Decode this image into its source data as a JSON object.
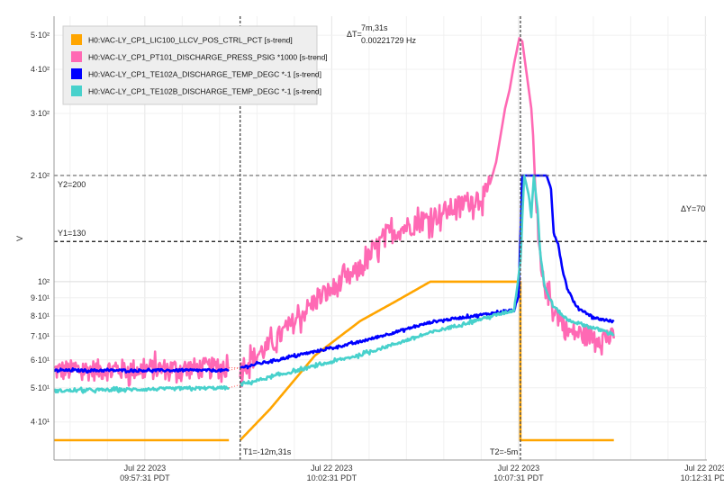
{
  "chart_data": {
    "type": "line",
    "title": "",
    "xlabel": "",
    "ylabel": "V",
    "yscale": "log",
    "xunits": "minutes since Jul 22 2023 09:57:31 PDT",
    "xlim": [
      -2.43,
      15.04
    ],
    "ylim": [
      31.2,
      566
    ],
    "grid": true,
    "legend_placement": "top-left",
    "y_ticks": [
      {
        "value": 40,
        "label": "4·10¹"
      },
      {
        "value": 50,
        "label": "5·10¹"
      },
      {
        "value": 60,
        "label": "6·10¹"
      },
      {
        "value": 70,
        "label": "7·10¹"
      },
      {
        "value": 80,
        "label": "8·10¹"
      },
      {
        "value": 90,
        "label": "9·10¹"
      },
      {
        "value": 100,
        "label": "10²"
      },
      {
        "value": 200,
        "label": "2·10²"
      },
      {
        "value": 300,
        "label": "3·10²"
      },
      {
        "value": 400,
        "label": "4·10²"
      },
      {
        "value": 500,
        "label": "5·10²"
      }
    ],
    "x_ticks": [
      {
        "value": 0,
        "date": "Jul 22 2023",
        "time": "09:57:31 PDT"
      },
      {
        "value": 5,
        "date": "Jul 22 2023",
        "time": "10:02:31 PDT"
      },
      {
        "value": 10,
        "date": "Jul 22 2023",
        "time": "10:07:31 PDT"
      },
      {
        "value": 15,
        "date": "Jul 22 2023",
        "time": "10:12:31 PDT"
      }
    ],
    "series": [
      {
        "name": "H0:VAC-LY_CP1_LIC100_LLCV_POS_CTRL_PCT [s-trend]",
        "color": "#FFA500",
        "noise": 0,
        "segments": [
          [
            [
              -2.43,
              35.5
            ],
            [
              2.25,
              35.5
            ]
          ],
          [
            [
              2.55,
              35.5
            ],
            [
              3.35,
              43.5
            ],
            [
              4.55,
              61.7
            ],
            [
              5.76,
              77.3
            ],
            [
              6.72,
              88
            ],
            [
              7.64,
              100
            ],
            [
              10.05,
              100
            ],
            [
              10.05,
              35.5
            ],
            [
              12.55,
              35.5
            ]
          ]
        ]
      },
      {
        "name": "H0:VAC-LY_CP1_PT101_DISCHARGE_PRESS_PSIG *1000 [s-trend]",
        "color": "#FF69B4",
        "noise": 0.07,
        "segments": [
          [
            [
              -2.43,
              56
            ],
            [
              2.25,
              57
            ]
          ],
          [
            [
              2.55,
              57
            ],
            [
              3.35,
              66
            ],
            [
              4.55,
              88
            ],
            [
              5.76,
              108
            ],
            [
              6.45,
              136
            ],
            [
              7.71,
              153
            ],
            [
              9.16,
              178
            ],
            [
              9.4,
              218
            ],
            [
              9.52,
              260
            ],
            [
              9.64,
              310
            ],
            [
              9.76,
              350
            ],
            [
              9.88,
              415
            ],
            [
              10.02,
              490
            ],
            [
              10.1,
              480
            ],
            [
              10.34,
              310
            ],
            [
              10.39,
              260
            ],
            [
              10.46,
              170
            ],
            [
              10.53,
              130
            ],
            [
              10.63,
              102
            ],
            [
              10.82,
              90
            ],
            [
              11.06,
              80
            ],
            [
              11.3,
              72
            ],
            [
              12.55,
              69
            ]
          ]
        ]
      },
      {
        "name": "H0:VAC-LY_CP1_TE102A_DISCHARGE_TEMP_DEGC *-1 [s-trend]",
        "color": "#0000FF",
        "noise": 0.008,
        "segments": [
          [
            [
              -2.43,
              56
            ],
            [
              2.25,
              56
            ]
          ],
          [
            [
              2.55,
              57
            ],
            [
              5.76,
              67.5
            ],
            [
              7.71,
              77
            ],
            [
              9.88,
              83
            ],
            [
              10.0,
              90
            ],
            [
              10.1,
              200
            ],
            [
              10.75,
              200
            ],
            [
              10.87,
              183
            ],
            [
              10.94,
              138
            ],
            [
              11.06,
              128
            ],
            [
              11.18,
              108
            ],
            [
              11.3,
              96
            ],
            [
              11.54,
              85
            ],
            [
              12.02,
              79
            ],
            [
              12.55,
              77
            ]
          ]
        ]
      },
      {
        "name": "H0:VAC-LY_CP1_TE102B_DISCHARGE_TEMP_DEGC *-1 [s-trend]",
        "color": "#48D1CC",
        "noise": 0.01,
        "segments": [
          [
            [
              -2.43,
              49
            ],
            [
              2.25,
              50
            ]
          ],
          [
            [
              2.55,
              51
            ],
            [
              5.76,
              62
            ],
            [
              7.71,
              72
            ],
            [
              9.88,
              83
            ],
            [
              10.05,
              114
            ],
            [
              10.15,
              200
            ],
            [
              10.27,
              178
            ],
            [
              10.34,
              153
            ],
            [
              10.41,
              200
            ],
            [
              10.51,
              160
            ],
            [
              10.58,
              121
            ],
            [
              10.7,
              96
            ],
            [
              10.94,
              85
            ],
            [
              11.3,
              78
            ],
            [
              12.55,
              71
            ]
          ]
        ]
      }
    ],
    "cursors": {
      "t1": {
        "value": 2.55,
        "label": "T1=-12m,31s"
      },
      "t2": {
        "value": 10.05,
        "label": "T2=-5m"
      },
      "delta_t_prefix": "ΔT=",
      "delta_t": "7m,31s",
      "frequency": "0.00221729 Hz",
      "y1": {
        "value": 130,
        "label": "Y1=130"
      },
      "y2": {
        "value": 200,
        "label": "Y2=200"
      },
      "delta_y": "ΔY=70"
    }
  }
}
